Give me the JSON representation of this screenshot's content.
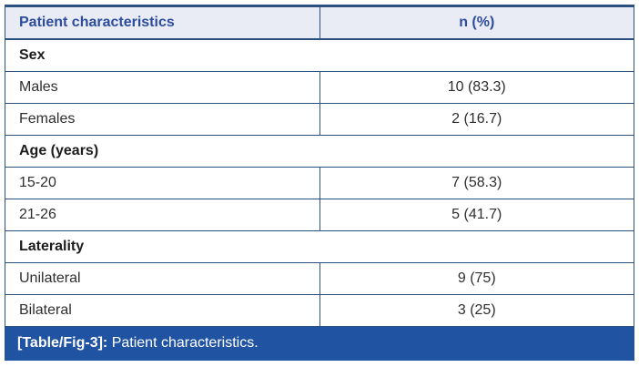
{
  "table": {
    "header": {
      "characteristics_label": "Patient characteristics",
      "n_percent_label": "n (%)"
    },
    "sections": [
      {
        "title": "Sex",
        "rows": [
          {
            "label": "Males",
            "value": "10 (83.3)"
          },
          {
            "label": "Females",
            "value": "2 (16.7)"
          }
        ]
      },
      {
        "title": "Age (years)",
        "rows": [
          {
            "label": "15-20",
            "value": "7 (58.3)"
          },
          {
            "label": "21-26",
            "value": "5 (41.7)"
          }
        ]
      },
      {
        "title": "Laterality",
        "rows": [
          {
            "label": "Unilateral",
            "value": "9 (75)"
          },
          {
            "label": "Bilateral",
            "value": "3 (25)"
          }
        ]
      }
    ],
    "caption": {
      "tag": "[Table/Fig-3]:",
      "text": "Patient characteristics."
    }
  },
  "chart_data": {
    "type": "table",
    "title": "[Table/Fig-3]: Patient characteristics.",
    "columns": [
      "Patient characteristics",
      "n (%)"
    ],
    "rows": [
      [
        "Sex",
        ""
      ],
      [
        "Males",
        "10 (83.3)"
      ],
      [
        "Females",
        "2 (16.7)"
      ],
      [
        "Age (years)",
        ""
      ],
      [
        "15-20",
        "7 (58.3)"
      ],
      [
        "21-26",
        "5 (41.7)"
      ],
      [
        "Laterality",
        ""
      ],
      [
        "Unilateral",
        "9 (75)"
      ],
      [
        "Bilateral",
        "3 (25)"
      ]
    ]
  },
  "colors": {
    "header_bg": "#e9ebf5",
    "header_text": "#2b4d9b",
    "border": "#2a5180",
    "caption_bg": "#2153a3",
    "caption_text": "#ffffff",
    "body_text": "#2e2e2e"
  }
}
